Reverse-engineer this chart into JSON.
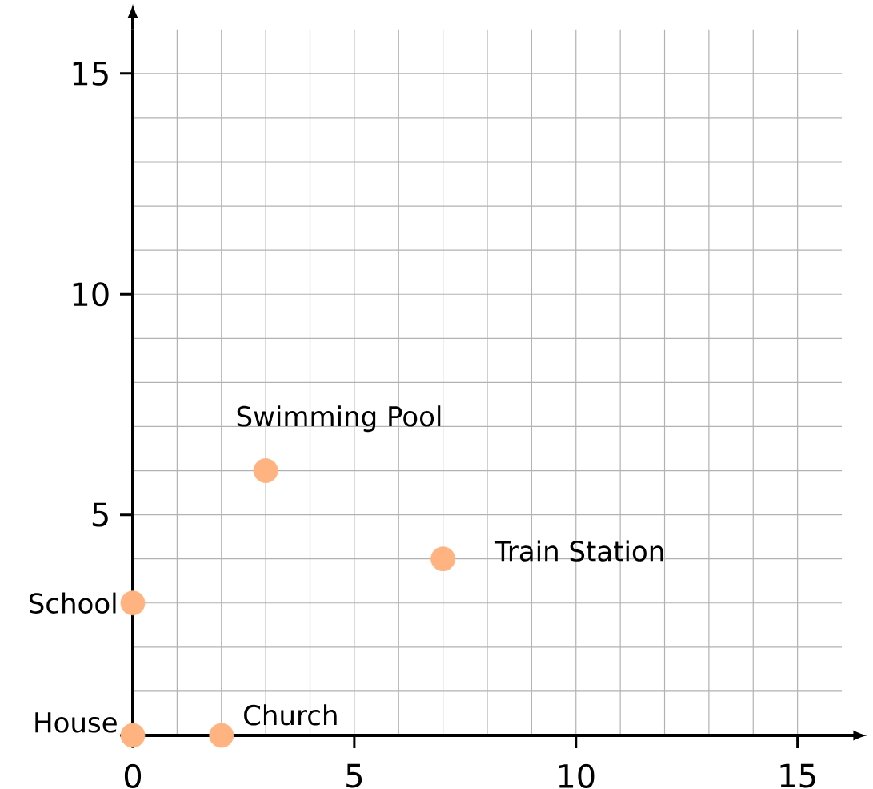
{
  "chart_data": {
    "type": "scatter",
    "x": [
      0,
      2,
      3,
      7,
      0
    ],
    "values": [
      0,
      0,
      6,
      4,
      3
    ],
    "color": "#ffb380",
    "xlim": [
      0,
      16
    ],
    "ylim": [
      0,
      16
    ],
    "xticks": [
      {
        "value": 0,
        "label": "0"
      },
      5,
      10,
      15
    ],
    "yticks": [
      {
        "value": 0,
        "label": null
      },
      5,
      10,
      15
    ],
    "grid": true,
    "annotations": [
      {
        "text": "House",
        "x": 0,
        "y": 0
      },
      {
        "text": "Church",
        "x": 2,
        "y": 0
      },
      {
        "text": "Swimming Pool",
        "x": 3,
        "y": 6
      },
      {
        "text": "Train Station",
        "x": 7,
        "y": 4
      },
      {
        "text": "School",
        "x": 0,
        "y": 3
      }
    ]
  }
}
